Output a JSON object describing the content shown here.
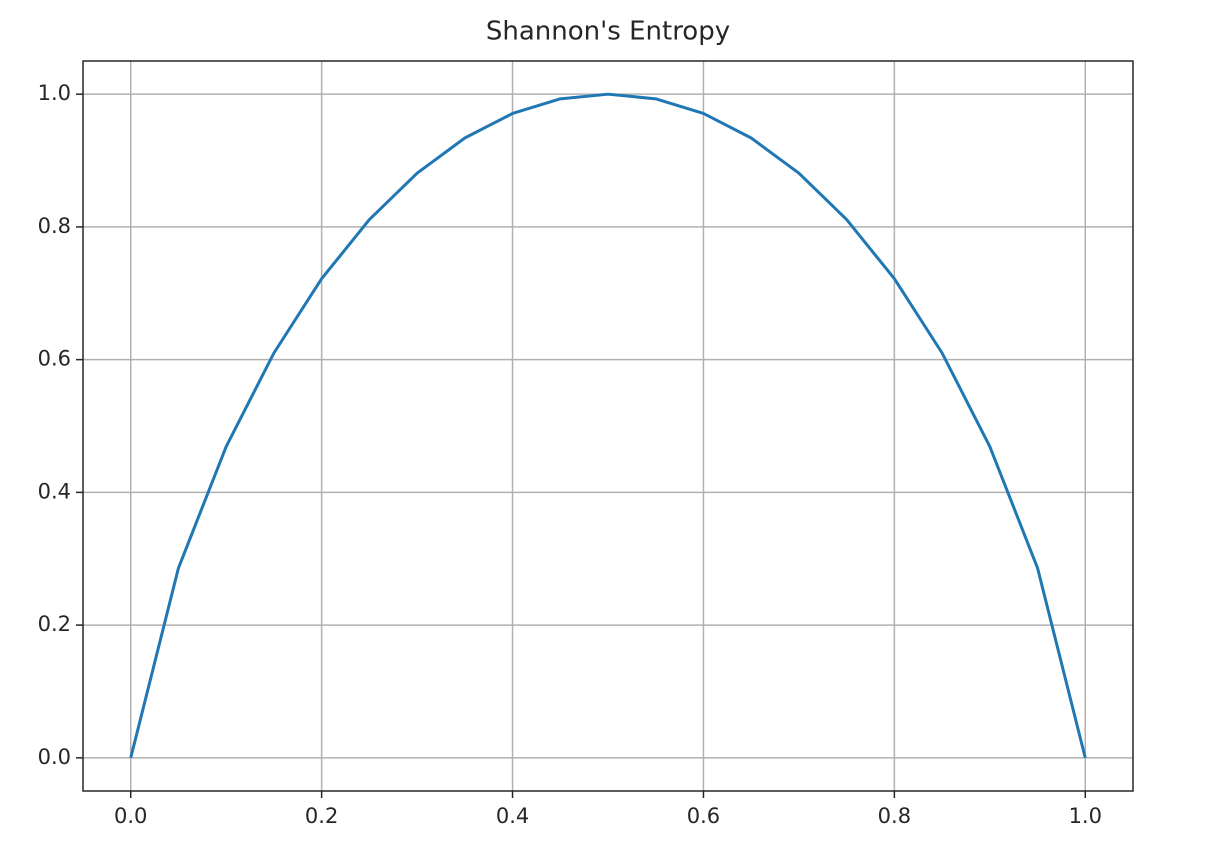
{
  "chart_data": {
    "type": "line",
    "title": "Shannon's Entropy",
    "x": [
      0,
      0.05,
      0.1,
      0.15,
      0.2,
      0.25,
      0.3,
      0.35,
      0.4,
      0.45,
      0.5,
      0.55,
      0.6,
      0.65,
      0.7,
      0.75,
      0.8,
      0.85,
      0.9,
      0.95,
      1
    ],
    "values": [
      0,
      0.286,
      0.469,
      0.61,
      0.722,
      0.811,
      0.881,
      0.934,
      0.971,
      0.993,
      1,
      0.993,
      0.971,
      0.934,
      0.881,
      0.811,
      0.722,
      0.61,
      0.469,
      0.286,
      0
    ],
    "color": "#1f77b4",
    "xlim": [
      -0.05,
      1.05
    ],
    "ylim": [
      -0.05,
      1.05
    ],
    "xticks": [
      {
        "value": 0,
        "label": "0.0"
      },
      0.2,
      0.4,
      0.6,
      0.8,
      {
        "value": 1,
        "label": "1.0"
      }
    ],
    "yticks": [
      {
        "value": 0,
        "label": "0.0"
      },
      0.2,
      0.4,
      0.6,
      0.8,
      {
        "value": 1,
        "label": "1.0"
      }
    ],
    "grid": true
  }
}
